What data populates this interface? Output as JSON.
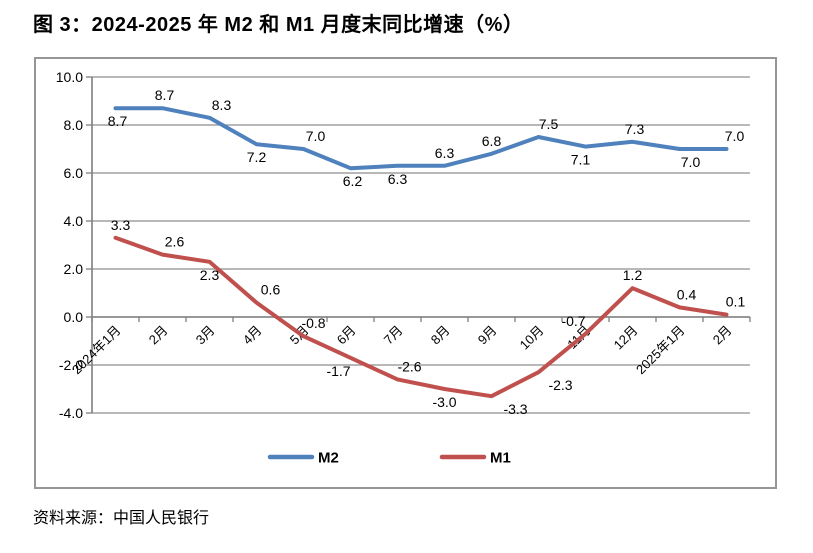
{
  "title": "图 3：2024-2025 年 M2 和 M1 月度末同比增速（%）",
  "source_note": "资料来源：中国人民银行",
  "chart_data": {
    "type": "line",
    "title": "图 3：2024-2025 年 M2 和 M1 月度末同比增速（%）",
    "categories": [
      "2024年1月",
      "2月",
      "3月",
      "4月",
      "5月",
      "6月",
      "7月",
      "8月",
      "9月",
      "10月",
      "11月",
      "12月",
      "2025年1月",
      "2月"
    ],
    "series": [
      {
        "name": "M2",
        "color": "#4F81BD",
        "values": [
          8.7,
          8.7,
          8.3,
          7.2,
          7.0,
          6.2,
          6.3,
          6.3,
          6.8,
          7.5,
          7.1,
          7.3,
          7.0,
          7.0
        ],
        "label_side": [
          "below",
          "above",
          "above",
          "below",
          "above",
          "below",
          "below",
          "above",
          "above",
          "above",
          "below",
          "above",
          "below",
          "above"
        ],
        "label_dx": [
          2,
          2,
          12,
          0,
          12,
          2,
          0,
          0,
          0,
          10,
          -5,
          2,
          11,
          8
        ]
      },
      {
        "name": "M1",
        "color": "#C0504D",
        "values": [
          3.3,
          2.6,
          2.3,
          0.6,
          -0.8,
          -1.7,
          -2.6,
          -3.0,
          -3.3,
          -2.3,
          -0.7,
          1.2,
          0.4,
          0.1
        ],
        "label_side": [
          "above",
          "above",
          "below",
          "above",
          "above",
          "below",
          "above",
          "below",
          "below",
          "below",
          "above",
          "above",
          "above",
          "above"
        ],
        "label_dx": [
          5,
          12,
          0,
          14,
          10,
          -12,
          12,
          0,
          24,
          22,
          -12,
          0,
          7,
          9
        ]
      }
    ],
    "ylim": [
      -4.0,
      10.0
    ],
    "ytick_step": 2.0,
    "ytick_labels": [
      "10.0",
      "8.0",
      "6.0",
      "4.0",
      "2.0",
      "0.0",
      "-2.0",
      "-4.0"
    ],
    "grid": true,
    "legend_position": "bottom-center",
    "colors": {
      "axis": "#7F7F7F",
      "grid": "#8E8E8E",
      "frame": "#969696",
      "label": "#000000"
    }
  }
}
